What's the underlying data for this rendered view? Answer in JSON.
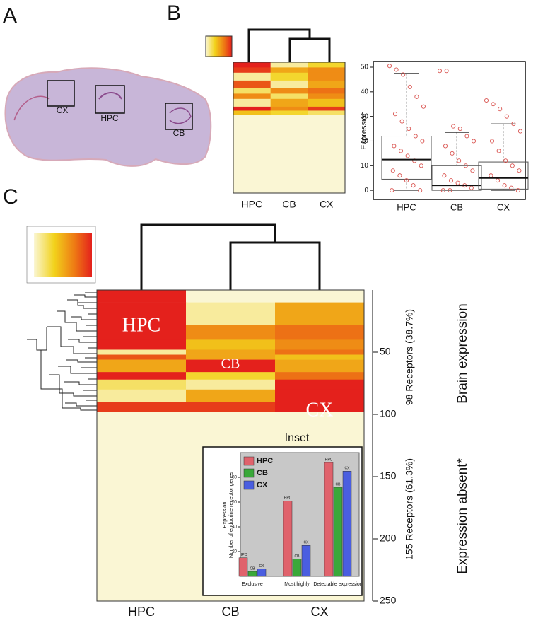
{
  "panels": [
    "A",
    "B",
    "C"
  ],
  "brain_regions": [
    "CX",
    "HPC",
    "CB"
  ],
  "chart_data": [
    {
      "type": "heatmap",
      "categories": [
        "HPC",
        "CB",
        "CX"
      ],
      "row_breaks": [
        0,
        4,
        8,
        14,
        20,
        24,
        28,
        34,
        37,
        40,
        100
      ],
      "values": [
        [
          1,
          0.1,
          0.3
        ],
        [
          0.9,
          0.5,
          0.6
        ],
        [
          0.1,
          0.3,
          0.6
        ],
        [
          0.8,
          0.1,
          0.5
        ],
        [
          0.2,
          0.6,
          0.7
        ],
        [
          0.6,
          0.2,
          0.6
        ],
        [
          0.1,
          0.5,
          0.4
        ],
        [
          1,
          0.6,
          0.9
        ],
        [
          0.4,
          0.3,
          0.2
        ],
        [
          0,
          0,
          0
        ]
      ],
      "colormap": [
        "#faf6d4",
        "#f2d21b",
        "#ee7a14",
        "#e4211c"
      ]
    },
    {
      "type": "box",
      "ylabel": "Expression",
      "categories": [
        "HPC",
        "CB",
        "CX"
      ],
      "ylim": [
        -3.7,
        52.3
      ],
      "yticks": [
        0,
        10,
        20,
        30,
        40,
        50
      ],
      "boxes": [
        {
          "min": 0,
          "q1": 4.5,
          "median": 12.5,
          "q3": 22,
          "max": 47.5
        },
        {
          "min": 0,
          "q1": 0,
          "median": 2,
          "q3": 10,
          "max": 23.5
        },
        {
          "min": 0,
          "q1": 0.5,
          "median": 5,
          "q3": 11.5,
          "max": 27
        }
      ],
      "points": [
        [
          50.5,
          49,
          47,
          42,
          38,
          34,
          31,
          28,
          25,
          22,
          20,
          18,
          16,
          14,
          12,
          10,
          8,
          6,
          4,
          2,
          0,
          0
        ],
        [
          48.5,
          48.5,
          26,
          25,
          22,
          20,
          18,
          15,
          12,
          10,
          8,
          6,
          4,
          3,
          2,
          1,
          0,
          0
        ],
        [
          36.5,
          35,
          33,
          30,
          27,
          24,
          20,
          16,
          12,
          10,
          8,
          6,
          4,
          2,
          1,
          0
        ]
      ],
      "point_color": "#d9534f"
    },
    {
      "type": "heatmap",
      "categories": [
        "HPC",
        "CB",
        "CX"
      ],
      "row_breaks": [
        0,
        10,
        28,
        40,
        48,
        52,
        56,
        66,
        72,
        80,
        90,
        98,
        250
      ],
      "values": [
        [
          1,
          0,
          0
        ],
        [
          1,
          0.1,
          0.5
        ],
        [
          1,
          0.6,
          0.7
        ],
        [
          1,
          0.4,
          0.6
        ],
        [
          0.1,
          0.5,
          0.7
        ],
        [
          0.8,
          0.5,
          0.4
        ],
        [
          0.5,
          1,
          0.5
        ],
        [
          1,
          0.3,
          0.7
        ],
        [
          0.2,
          0.1,
          1
        ],
        [
          0.1,
          0.5,
          1
        ],
        [
          0.9,
          0.9,
          1
        ],
        [
          0,
          0,
          0
        ]
      ],
      "colormap": [
        "#faf6d4",
        "#f2d21b",
        "#ee7a14",
        "#e4211c"
      ],
      "ylim": [
        0,
        250
      ],
      "yticks": [
        50,
        100,
        150,
        200,
        250
      ],
      "cell_labels": [
        "HPC",
        "CB",
        "CX"
      ],
      "annotations": [
        "98 Receptors (38.7%)",
        "155 Receptors (61.3%)",
        "Brain expression",
        "Expression absent*"
      ],
      "inset_title": "Inset"
    },
    {
      "type": "bar",
      "ylabel": [
        "Expression",
        "Number of endocrine receptor genes"
      ],
      "categories": [
        "Exclusive",
        "Most highly",
        "Detectable expression"
      ],
      "ylim": [
        0,
        100
      ],
      "yticks": [
        20,
        40,
        60,
        80
      ],
      "series": [
        {
          "name": "HPC",
          "color": "#e0626c",
          "values": [
            15,
            61,
            92
          ]
        },
        {
          "name": "CB",
          "color": "#3aa83a",
          "values": [
            4,
            14,
            72
          ]
        },
        {
          "name": "CX",
          "color": "#4a5ee0",
          "values": [
            6,
            25,
            85
          ]
        }
      ]
    }
  ]
}
